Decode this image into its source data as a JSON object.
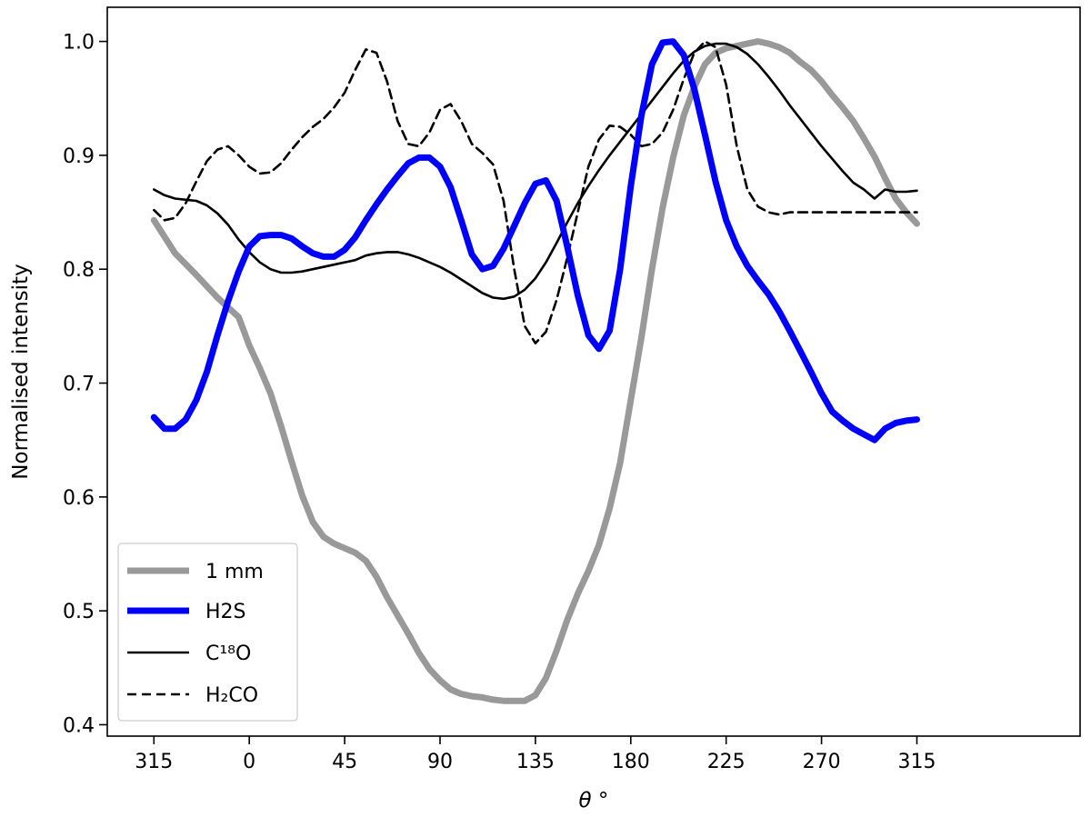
{
  "chart_data": {
    "type": "line",
    "xlabel": "θ °",
    "ylabel": "Normalised intensity",
    "x_tick_labels": [
      "315",
      "0",
      "45",
      "90",
      "135",
      "180",
      "225",
      "270",
      "315"
    ],
    "y_ticks": [
      0.4,
      0.5,
      0.6,
      0.7,
      0.8,
      0.9,
      1.0
    ],
    "y_tick_labels": [
      "0.4",
      "0.5",
      "0.6",
      "0.7",
      "0.8",
      "0.9",
      "1.0"
    ],
    "xlim_unwrapped": [
      -67,
      392
    ],
    "ylim": [
      0.39,
      1.03
    ],
    "x_unwrapped_note_hidden": true,
    "grid": false,
    "legend_position": "lower-left",
    "series": [
      {
        "key": "mm1",
        "name": "1 mm",
        "color": "#999999",
        "style": "solid-thick",
        "x": [
          315,
          325,
          335,
          345,
          355,
          0,
          5,
          10,
          15,
          20,
          25,
          30,
          35,
          40,
          45,
          50,
          55,
          60,
          65,
          70,
          75,
          80,
          85,
          90,
          95,
          100,
          105,
          110,
          115,
          120,
          125,
          130,
          135,
          140,
          145,
          150,
          155,
          160,
          165,
          170,
          175,
          180,
          185,
          190,
          195,
          200,
          205,
          210,
          215,
          220,
          225,
          230,
          235,
          240,
          245,
          250,
          255,
          260,
          265,
          270,
          275,
          280,
          285,
          290,
          295,
          300,
          305,
          310,
          315
        ],
        "y": [
          0.843,
          0.814,
          0.795,
          0.775,
          0.758,
          0.733,
          0.713,
          0.691,
          0.662,
          0.631,
          0.601,
          0.578,
          0.565,
          0.559,
          0.555,
          0.551,
          0.544,
          0.53,
          0.512,
          0.496,
          0.48,
          0.463,
          0.449,
          0.439,
          0.431,
          0.427,
          0.425,
          0.424,
          0.422,
          0.421,
          0.421,
          0.421,
          0.426,
          0.441,
          0.465,
          0.492,
          0.515,
          0.535,
          0.558,
          0.59,
          0.63,
          0.685,
          0.74,
          0.8,
          0.854,
          0.898,
          0.935,
          0.96,
          0.98,
          0.99,
          0.994,
          0.996,
          0.998,
          1.0,
          0.998,
          0.995,
          0.99,
          0.982,
          0.975,
          0.965,
          0.953,
          0.942,
          0.93,
          0.915,
          0.899,
          0.88,
          0.862,
          0.85,
          0.84
        ]
      },
      {
        "key": "h2s",
        "name": "H2S",
        "color": "#0000ff",
        "style": "solid-thick",
        "x": [
          315,
          320,
          325,
          330,
          335,
          340,
          345,
          350,
          355,
          0,
          5,
          10,
          15,
          20,
          25,
          30,
          35,
          40,
          45,
          50,
          55,
          60,
          65,
          70,
          75,
          80,
          85,
          90,
          95,
          100,
          105,
          110,
          115,
          120,
          125,
          130,
          135,
          140,
          145,
          150,
          155,
          160,
          165,
          170,
          175,
          180,
          185,
          190,
          195,
          200,
          205,
          210,
          215,
          220,
          225,
          230,
          235,
          240,
          245,
          250,
          255,
          260,
          265,
          270,
          275,
          280,
          285,
          290,
          295,
          300,
          305,
          310,
          315
        ],
        "y": [
          0.67,
          0.66,
          0.66,
          0.668,
          0.685,
          0.71,
          0.742,
          0.772,
          0.798,
          0.82,
          0.829,
          0.83,
          0.83,
          0.827,
          0.82,
          0.814,
          0.811,
          0.811,
          0.817,
          0.828,
          0.843,
          0.857,
          0.87,
          0.882,
          0.893,
          0.898,
          0.898,
          0.89,
          0.872,
          0.843,
          0.813,
          0.8,
          0.803,
          0.818,
          0.838,
          0.858,
          0.875,
          0.878,
          0.86,
          0.82,
          0.777,
          0.742,
          0.73,
          0.746,
          0.8,
          0.873,
          0.935,
          0.98,
          0.999,
          1.0,
          0.988,
          0.958,
          0.918,
          0.877,
          0.843,
          0.82,
          0.803,
          0.79,
          0.778,
          0.763,
          0.746,
          0.728,
          0.71,
          0.691,
          0.675,
          0.667,
          0.66,
          0.655,
          0.65,
          0.66,
          0.665,
          0.667,
          0.668
        ]
      },
      {
        "key": "c18o",
        "name": "C¹⁸O",
        "color": "#000000",
        "style": "solid",
        "x": [
          315,
          320,
          325,
          330,
          335,
          340,
          345,
          350,
          355,
          0,
          5,
          10,
          15,
          20,
          25,
          30,
          35,
          40,
          45,
          50,
          55,
          60,
          65,
          70,
          75,
          80,
          85,
          90,
          95,
          100,
          105,
          110,
          115,
          120,
          125,
          130,
          135,
          140,
          145,
          150,
          155,
          160,
          165,
          170,
          175,
          180,
          185,
          190,
          195,
          200,
          205,
          210,
          215,
          220,
          225,
          230,
          235,
          240,
          245,
          250,
          255,
          260,
          265,
          270,
          275,
          280,
          285,
          290,
          295,
          300,
          305,
          310,
          315
        ],
        "y": [
          0.87,
          0.865,
          0.862,
          0.861,
          0.86,
          0.856,
          0.849,
          0.839,
          0.826,
          0.815,
          0.806,
          0.8,
          0.797,
          0.797,
          0.798,
          0.8,
          0.802,
          0.804,
          0.806,
          0.808,
          0.812,
          0.814,
          0.815,
          0.815,
          0.813,
          0.81,
          0.806,
          0.802,
          0.797,
          0.791,
          0.785,
          0.779,
          0.775,
          0.774,
          0.776,
          0.782,
          0.792,
          0.806,
          0.823,
          0.841,
          0.858,
          0.873,
          0.887,
          0.9,
          0.912,
          0.924,
          0.936,
          0.948,
          0.96,
          0.972,
          0.983,
          0.991,
          0.996,
          0.998,
          0.998,
          0.995,
          0.989,
          0.98,
          0.969,
          0.957,
          0.944,
          0.932,
          0.92,
          0.908,
          0.897,
          0.886,
          0.876,
          0.87,
          0.862,
          0.87,
          0.868,
          0.868,
          0.869
        ]
      },
      {
        "key": "h2co",
        "name": "H₂CO",
        "color": "#000000",
        "style": "dashed",
        "x": [
          315,
          320,
          325,
          330,
          335,
          340,
          345,
          350,
          355,
          0,
          5,
          10,
          15,
          20,
          25,
          30,
          35,
          40,
          45,
          50,
          55,
          60,
          65,
          70,
          75,
          80,
          85,
          90,
          95,
          100,
          105,
          110,
          115,
          120,
          125,
          130,
          135,
          140,
          145,
          150,
          155,
          160,
          165,
          170,
          175,
          180,
          185,
          190,
          195,
          200,
          205,
          210,
          215,
          220,
          225,
          230,
          235,
          240,
          245,
          250,
          255,
          260,
          265,
          270,
          275,
          280,
          285,
          290,
          295,
          300,
          305,
          310,
          315
        ],
        "y": [
          0.852,
          0.843,
          0.845,
          0.858,
          0.877,
          0.895,
          0.905,
          0.908,
          0.9,
          0.89,
          0.884,
          0.885,
          0.893,
          0.905,
          0.916,
          0.925,
          0.932,
          0.942,
          0.955,
          0.975,
          0.993,
          0.99,
          0.965,
          0.93,
          0.91,
          0.908,
          0.92,
          0.94,
          0.945,
          0.93,
          0.91,
          0.902,
          0.892,
          0.86,
          0.8,
          0.75,
          0.735,
          0.745,
          0.773,
          0.81,
          0.85,
          0.89,
          0.914,
          0.926,
          0.925,
          0.918,
          0.908,
          0.91,
          0.92,
          0.94,
          0.967,
          0.99,
          1.0,
          0.995,
          0.962,
          0.908,
          0.87,
          0.855,
          0.85,
          0.848,
          0.85,
          0.85,
          0.85,
          0.85,
          0.85,
          0.85,
          0.85,
          0.85,
          0.85,
          0.85,
          0.85,
          0.85,
          0.85
        ]
      }
    ]
  }
}
